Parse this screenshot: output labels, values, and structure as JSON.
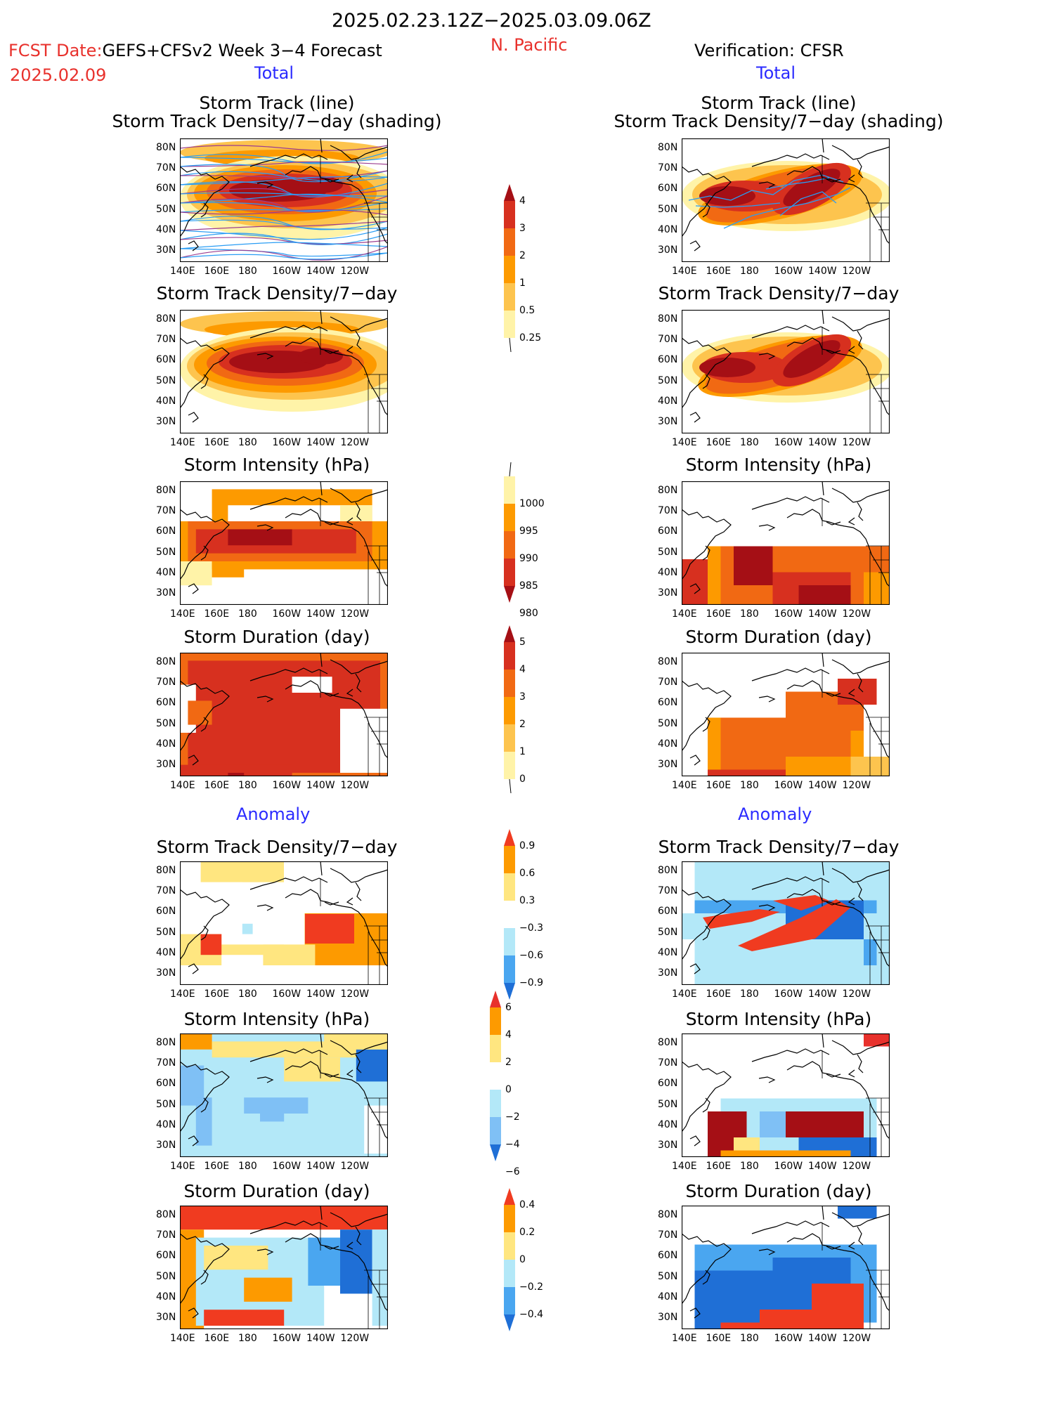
{
  "header": {
    "date_range": "2025.02.23.12Z−2025.03.09.06Z",
    "fcst_prefix": "FCST Date:",
    "fcst_model": "GEFS+CFSv2 Week 3−4 Forecast",
    "fcst_date": "2025.02.09",
    "region": "N. Pacific",
    "verification": "Verification: CFSR",
    "left_section": "Total",
    "right_section": "Total"
  },
  "anomaly_headers": {
    "left": "Anomaly",
    "right": "Anomaly"
  },
  "panel_titles": {
    "track": "Storm Track (line)",
    "track_density_shading": "Storm Track Density/7−day (shading)",
    "density": "Storm Track Density/7−day",
    "intensity": "Storm Intensity (hPa)",
    "duration": "Storm Duration (day)"
  },
  "axes": {
    "lat_ticks": [
      "80N",
      "70N",
      "60N",
      "50N",
      "40N",
      "30N"
    ],
    "lon_ticks": [
      "140E",
      "160E",
      "180",
      "160W",
      "140W",
      "120W"
    ]
  },
  "colorbars": {
    "density_total": {
      "labels": [
        "4",
        "3",
        "2",
        "1",
        "0.5",
        "0.25"
      ],
      "colors": [
        "#a50f15",
        "#d7301f",
        "#f16913",
        "#fd9a00",
        "#fdc44e",
        "#fff3a8"
      ]
    },
    "intensity_total": {
      "labels": [
        "1000",
        "995",
        "990",
        "985",
        "980"
      ],
      "colors": [
        "#fff3a8",
        "#fd9a00",
        "#f16913",
        "#d7301f",
        "#a50f15"
      ]
    },
    "duration_total": {
      "labels": [
        "5",
        "4",
        "3",
        "2",
        "1",
        "0"
      ],
      "colors": [
        "#a50f15",
        "#d7301f",
        "#f16913",
        "#fd9a00",
        "#fdc44e",
        "#fff3a8"
      ]
    },
    "density_anom": {
      "labels": [
        "0.9",
        "0.6",
        "0.3",
        "−0.3",
        "−0.6",
        "−0.9"
      ],
      "colors": [
        "#f03b20",
        "#fd9a00",
        "#ffe680",
        "#ffffff",
        "#b3e8f8",
        "#4aa6f0",
        "#1f6fd6"
      ]
    },
    "intensity_anom": {
      "labels": [
        "6",
        "4",
        "2",
        "0",
        "−2",
        "−4",
        "−6"
      ],
      "colors": [
        "#e8312c",
        "#fd9a00",
        "#ffe680",
        "#ffffff",
        "#b3e8f8",
        "#7fc0f5",
        "#1f6fd6"
      ]
    },
    "duration_anom": {
      "labels": [
        "0.4",
        "0.2",
        "0",
        "−0.2",
        "−0.4"
      ],
      "colors": [
        "#f03b20",
        "#fd9a00",
        "#ffe680",
        "#b3e8f8",
        "#4aa6f0",
        "#1f6fd6"
      ]
    }
  }
}
